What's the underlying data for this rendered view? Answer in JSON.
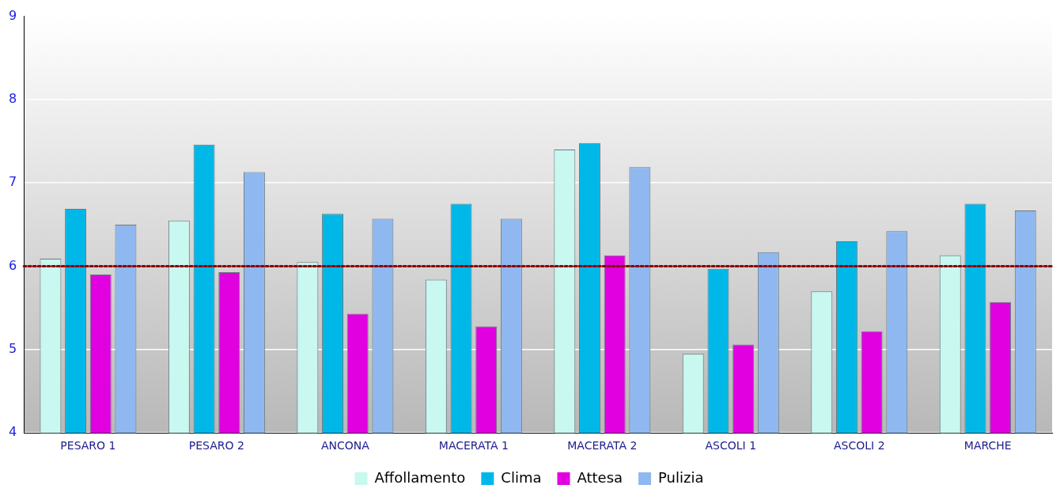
{
  "chart_data": {
    "type": "bar",
    "categories": [
      "PESARO 1",
      "PESARO 2",
      "ANCONA",
      "MACERATA 1",
      "MACERATA 2",
      "ASCOLI 1",
      "ASCOLI 2",
      "MARCHE"
    ],
    "series": [
      {
        "name": "Affollamento",
        "color": "#c8f8f0",
        "values": [
          6.09,
          6.55,
          6.05,
          5.84,
          7.4,
          4.95,
          5.7,
          6.13
        ]
      },
      {
        "name": "Clima",
        "color": "#00b8e8",
        "values": [
          6.69,
          7.46,
          6.63,
          6.75,
          7.48,
          5.97,
          6.3,
          6.75
        ]
      },
      {
        "name": "Attesa",
        "color": "#e000e0",
        "values": [
          5.9,
          5.93,
          5.43,
          5.28,
          6.13,
          5.06,
          5.22,
          5.57
        ]
      },
      {
        "name": "Pulizia",
        "color": "#90b8f0",
        "values": [
          6.5,
          7.13,
          6.57,
          6.57,
          7.19,
          6.17,
          6.42,
          6.67
        ]
      }
    ],
    "ylim": [
      4,
      9
    ],
    "yticks": [
      4,
      5,
      6,
      7,
      8,
      9
    ],
    "ref_lines": [
      {
        "axis": "y",
        "value": 6,
        "color": "#8b0000",
        "line_style": "dotted"
      }
    ],
    "grid": "y",
    "legend": "bottom"
  }
}
